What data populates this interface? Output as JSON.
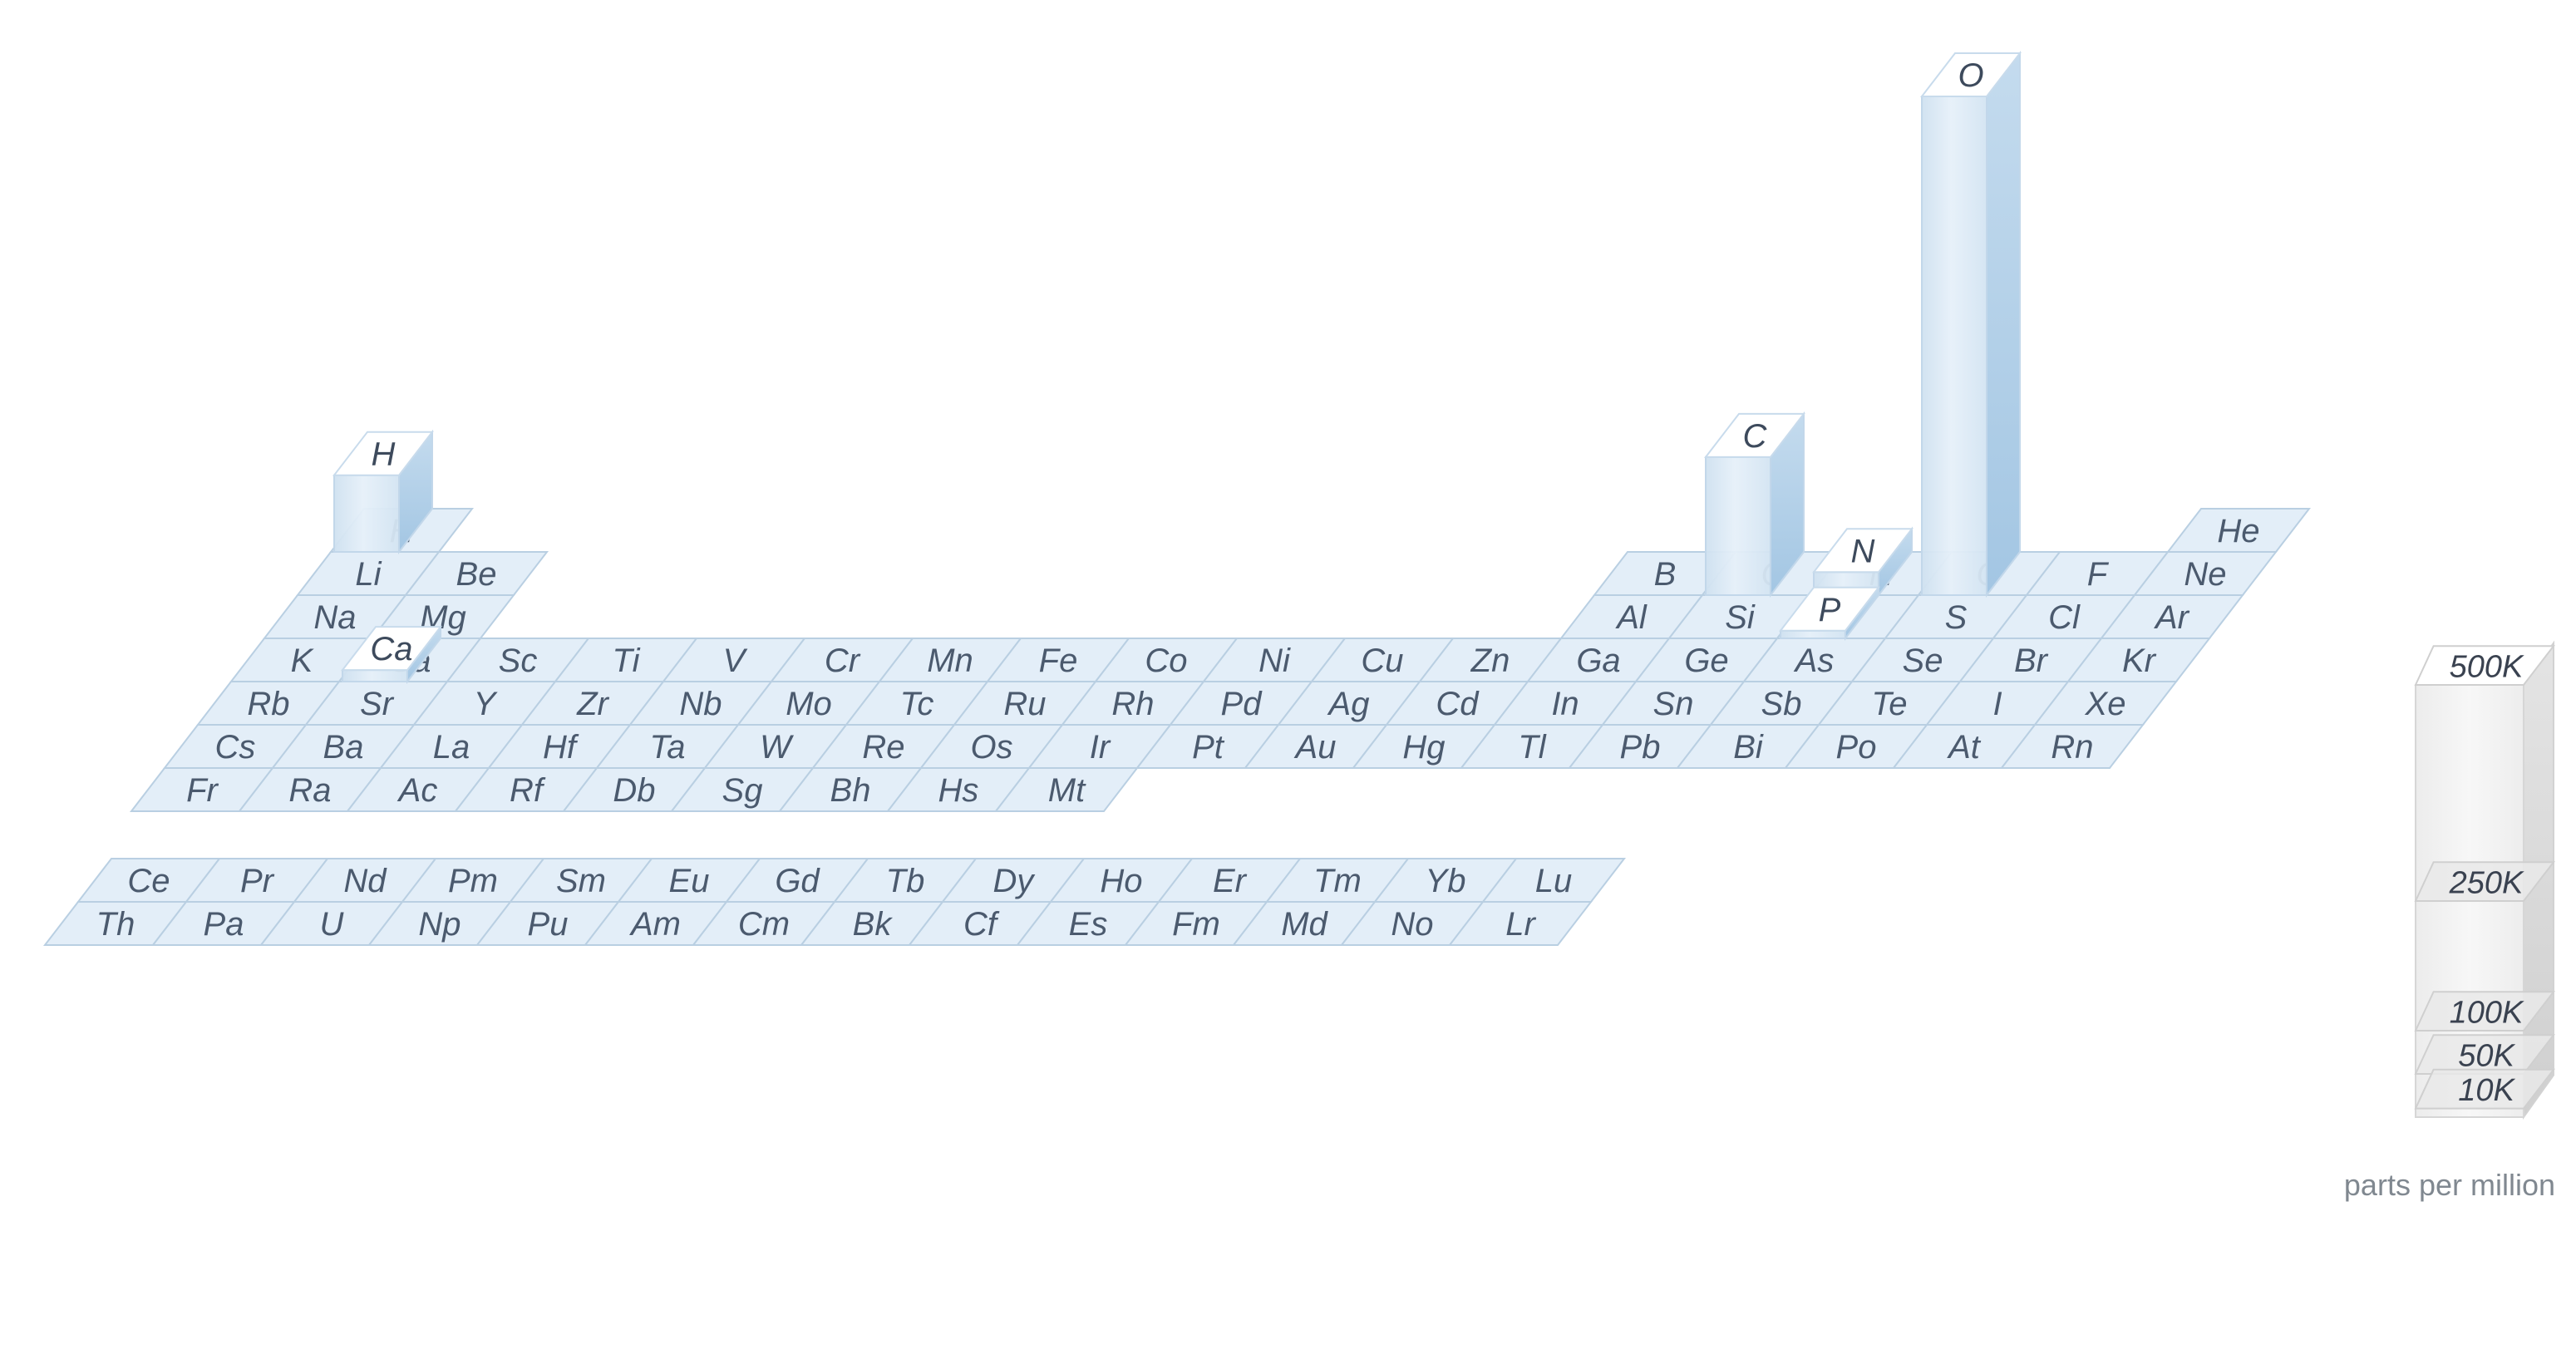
{
  "chart_data": {
    "type": "bar",
    "subtype": "3d-periodic-table",
    "units": "parts per million",
    "tiles": {
      "main_rows": [
        [
          "H",
          "",
          "",
          "",
          "",
          "",
          "",
          "",
          "",
          "",
          "",
          "",
          "",
          "",
          "",
          "",
          "",
          "He"
        ],
        [
          "Li",
          "Be",
          "",
          "",
          "",
          "",
          "",
          "",
          "",
          "",
          "",
          "",
          "B",
          "C",
          "N",
          "O",
          "F",
          "Ne"
        ],
        [
          "Na",
          "Mg",
          "",
          "",
          "",
          "",
          "",
          "",
          "",
          "",
          "",
          "",
          "Al",
          "Si",
          "P",
          "S",
          "Cl",
          "Ar"
        ],
        [
          "K",
          "Ca",
          "Sc",
          "Ti",
          "V",
          "Cr",
          "Mn",
          "Fe",
          "Co",
          "Ni",
          "Cu",
          "Zn",
          "Ga",
          "Ge",
          "As",
          "Se",
          "Br",
          "Kr"
        ],
        [
          "Rb",
          "Sr",
          "Y",
          "Zr",
          "Nb",
          "Mo",
          "Tc",
          "Ru",
          "Rh",
          "Pd",
          "Ag",
          "Cd",
          "In",
          "Sn",
          "Sb",
          "Te",
          "I",
          "Xe"
        ],
        [
          "Cs",
          "Ba",
          "La",
          "Hf",
          "Ta",
          "W",
          "Re",
          "Os",
          "Ir",
          "Pt",
          "Au",
          "Hg",
          "Tl",
          "Pb",
          "Bi",
          "Po",
          "At",
          "Rn"
        ],
        [
          "Fr",
          "Ra",
          "Ac",
          "Rf",
          "Db",
          "Sg",
          "Bh",
          "Hs",
          "Mt",
          "",
          "",
          "",
          "",
          "",
          "",
          "",
          "",
          ""
        ]
      ],
      "f_rows": [
        [
          "Ce",
          "Pr",
          "Nd",
          "Pm",
          "Sm",
          "Eu",
          "Gd",
          "Tb",
          "Dy",
          "Ho",
          "Er",
          "Tm",
          "Yb",
          "Lu"
        ],
        [
          "Th",
          "Pa",
          "U",
          "Np",
          "Pu",
          "Am",
          "Cm",
          "Bk",
          "Cf",
          "Es",
          "Fm",
          "Md",
          "No",
          "Lr"
        ]
      ]
    },
    "values_ppm": [
      {
        "element": "H",
        "value": 100000
      },
      {
        "element": "C",
        "value": 180000
      },
      {
        "element": "N",
        "value": 30000
      },
      {
        "element": "O",
        "value": 650000
      },
      {
        "element": "P",
        "value": 10000
      },
      {
        "element": "Ca",
        "value": 15000
      }
    ],
    "legend": {
      "ticks": [
        {
          "label": "500K",
          "value": 500000
        },
        {
          "label": "250K",
          "value": 250000
        },
        {
          "label": "100K",
          "value": 100000
        },
        {
          "label": "50K",
          "value": 50000
        },
        {
          "label": "10K",
          "value": 10000
        }
      ],
      "units_label": "parts per million"
    },
    "colors": {
      "tile_fill": "#e3eef8",
      "tile_stroke": "#b9cfe2",
      "bar_front": "#d6e6f3",
      "bar_side": "#a9cbe6",
      "bar_top": "#ffffff",
      "legend_front": "#f1f1f1",
      "legend_side": "#dedede"
    }
  }
}
